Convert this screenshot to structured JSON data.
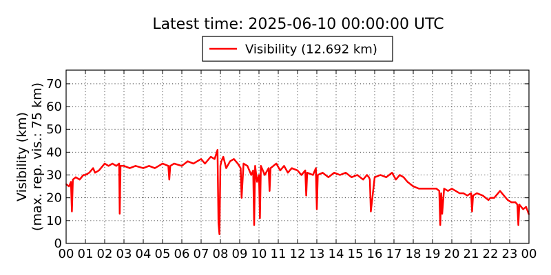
{
  "chart_data": {
    "type": "line",
    "title": "Latest time: 2025-06-10 00:00:00 UTC",
    "ylabel_line1": "Visibility (km)",
    "ylabel_line2": "(max. rep. vis.: 75 km)",
    "xlabel": "",
    "xlim": [
      0,
      24
    ],
    "ylim": [
      0,
      76
    ],
    "yticks": [
      0,
      10,
      20,
      30,
      40,
      50,
      60,
      70
    ],
    "xticks": [
      0,
      1,
      2,
      3,
      4,
      5,
      6,
      7,
      8,
      9,
      10,
      11,
      12,
      13,
      14,
      15,
      16,
      17,
      18,
      19,
      20,
      21,
      22,
      23,
      24
    ],
    "xtick_labels": [
      "00",
      "01",
      "02",
      "03",
      "04",
      "05",
      "06",
      "07",
      "08",
      "09",
      "10",
      "11",
      "12",
      "13",
      "14",
      "15",
      "16",
      "17",
      "18",
      "19",
      "20",
      "21",
      "22",
      "23",
      "00"
    ],
    "grid": true,
    "legend_position": "top-center",
    "series": [
      {
        "name": "Visibility (12.692 km)",
        "color": "#ff0000",
        "x": [
          0.0,
          0.15,
          0.25,
          0.3,
          0.35,
          0.5,
          0.7,
          0.9,
          1.0,
          1.2,
          1.4,
          1.5,
          1.7,
          1.9,
          2.0,
          2.2,
          2.4,
          2.6,
          2.75,
          2.78,
          2.82,
          3.0,
          3.3,
          3.6,
          4.0,
          4.3,
          4.6,
          4.8,
          5.0,
          5.3,
          5.35,
          5.4,
          5.6,
          6.0,
          6.3,
          6.6,
          6.8,
          7.0,
          7.2,
          7.5,
          7.7,
          7.85,
          7.9,
          7.95,
          8.0,
          8.05,
          8.15,
          8.3,
          8.5,
          8.7,
          8.9,
          9.05,
          9.1,
          9.2,
          9.4,
          9.6,
          9.7,
          9.75,
          9.8,
          9.9,
          10.0,
          10.05,
          10.1,
          10.3,
          10.5,
          10.55,
          10.6,
          10.9,
          11.1,
          11.3,
          11.5,
          11.7,
          12.0,
          12.2,
          12.4,
          12.45,
          12.5,
          12.8,
          12.95,
          13.0,
          13.05,
          13.3,
          13.6,
          13.9,
          14.2,
          14.5,
          14.8,
          15.1,
          15.4,
          15.6,
          15.7,
          15.75,
          15.8,
          16.0,
          16.3,
          16.6,
          16.9,
          17.1,
          17.3,
          17.5,
          17.7,
          18.0,
          18.3,
          18.6,
          18.9,
          19.2,
          19.35,
          19.4,
          19.45,
          19.5,
          19.6,
          19.8,
          20.0,
          20.2,
          20.4,
          20.6,
          20.8,
          21.0,
          21.05,
          21.1,
          21.3,
          21.6,
          21.9,
          22.0,
          22.2,
          22.5,
          22.7,
          22.9,
          23.1,
          23.3,
          23.4,
          23.45,
          23.5,
          23.7,
          23.85,
          24.0
        ],
        "values": [
          26,
          25,
          27,
          14,
          28,
          29,
          28,
          30,
          30,
          31,
          33,
          31,
          32,
          34,
          35,
          34,
          35,
          34,
          35,
          13,
          34,
          34,
          33,
          34,
          33,
          34,
          33,
          34,
          35,
          34,
          28,
          34,
          35,
          34,
          36,
          35,
          36,
          37,
          35,
          38,
          37,
          41,
          9,
          4,
          34,
          36,
          38,
          33,
          36,
          37,
          35,
          33,
          20,
          35,
          34,
          30,
          32,
          8,
          34,
          27,
          30,
          11,
          34,
          30,
          33,
          23,
          33,
          35,
          32,
          34,
          31,
          33,
          32,
          30,
          32,
          21,
          31,
          30,
          33,
          15,
          30,
          31,
          29,
          31,
          30,
          31,
          29,
          30,
          28,
          30,
          29,
          28,
          14,
          29,
          30,
          29,
          31,
          28,
          30,
          29,
          27,
          25,
          24,
          24,
          24,
          24,
          23,
          8,
          22,
          13,
          24,
          23,
          24,
          23,
          22,
          22,
          21,
          22,
          14,
          21,
          22,
          21,
          19,
          20,
          20,
          23,
          21,
          19,
          18,
          18,
          17,
          8,
          17,
          15,
          16,
          12.7
        ]
      }
    ]
  }
}
